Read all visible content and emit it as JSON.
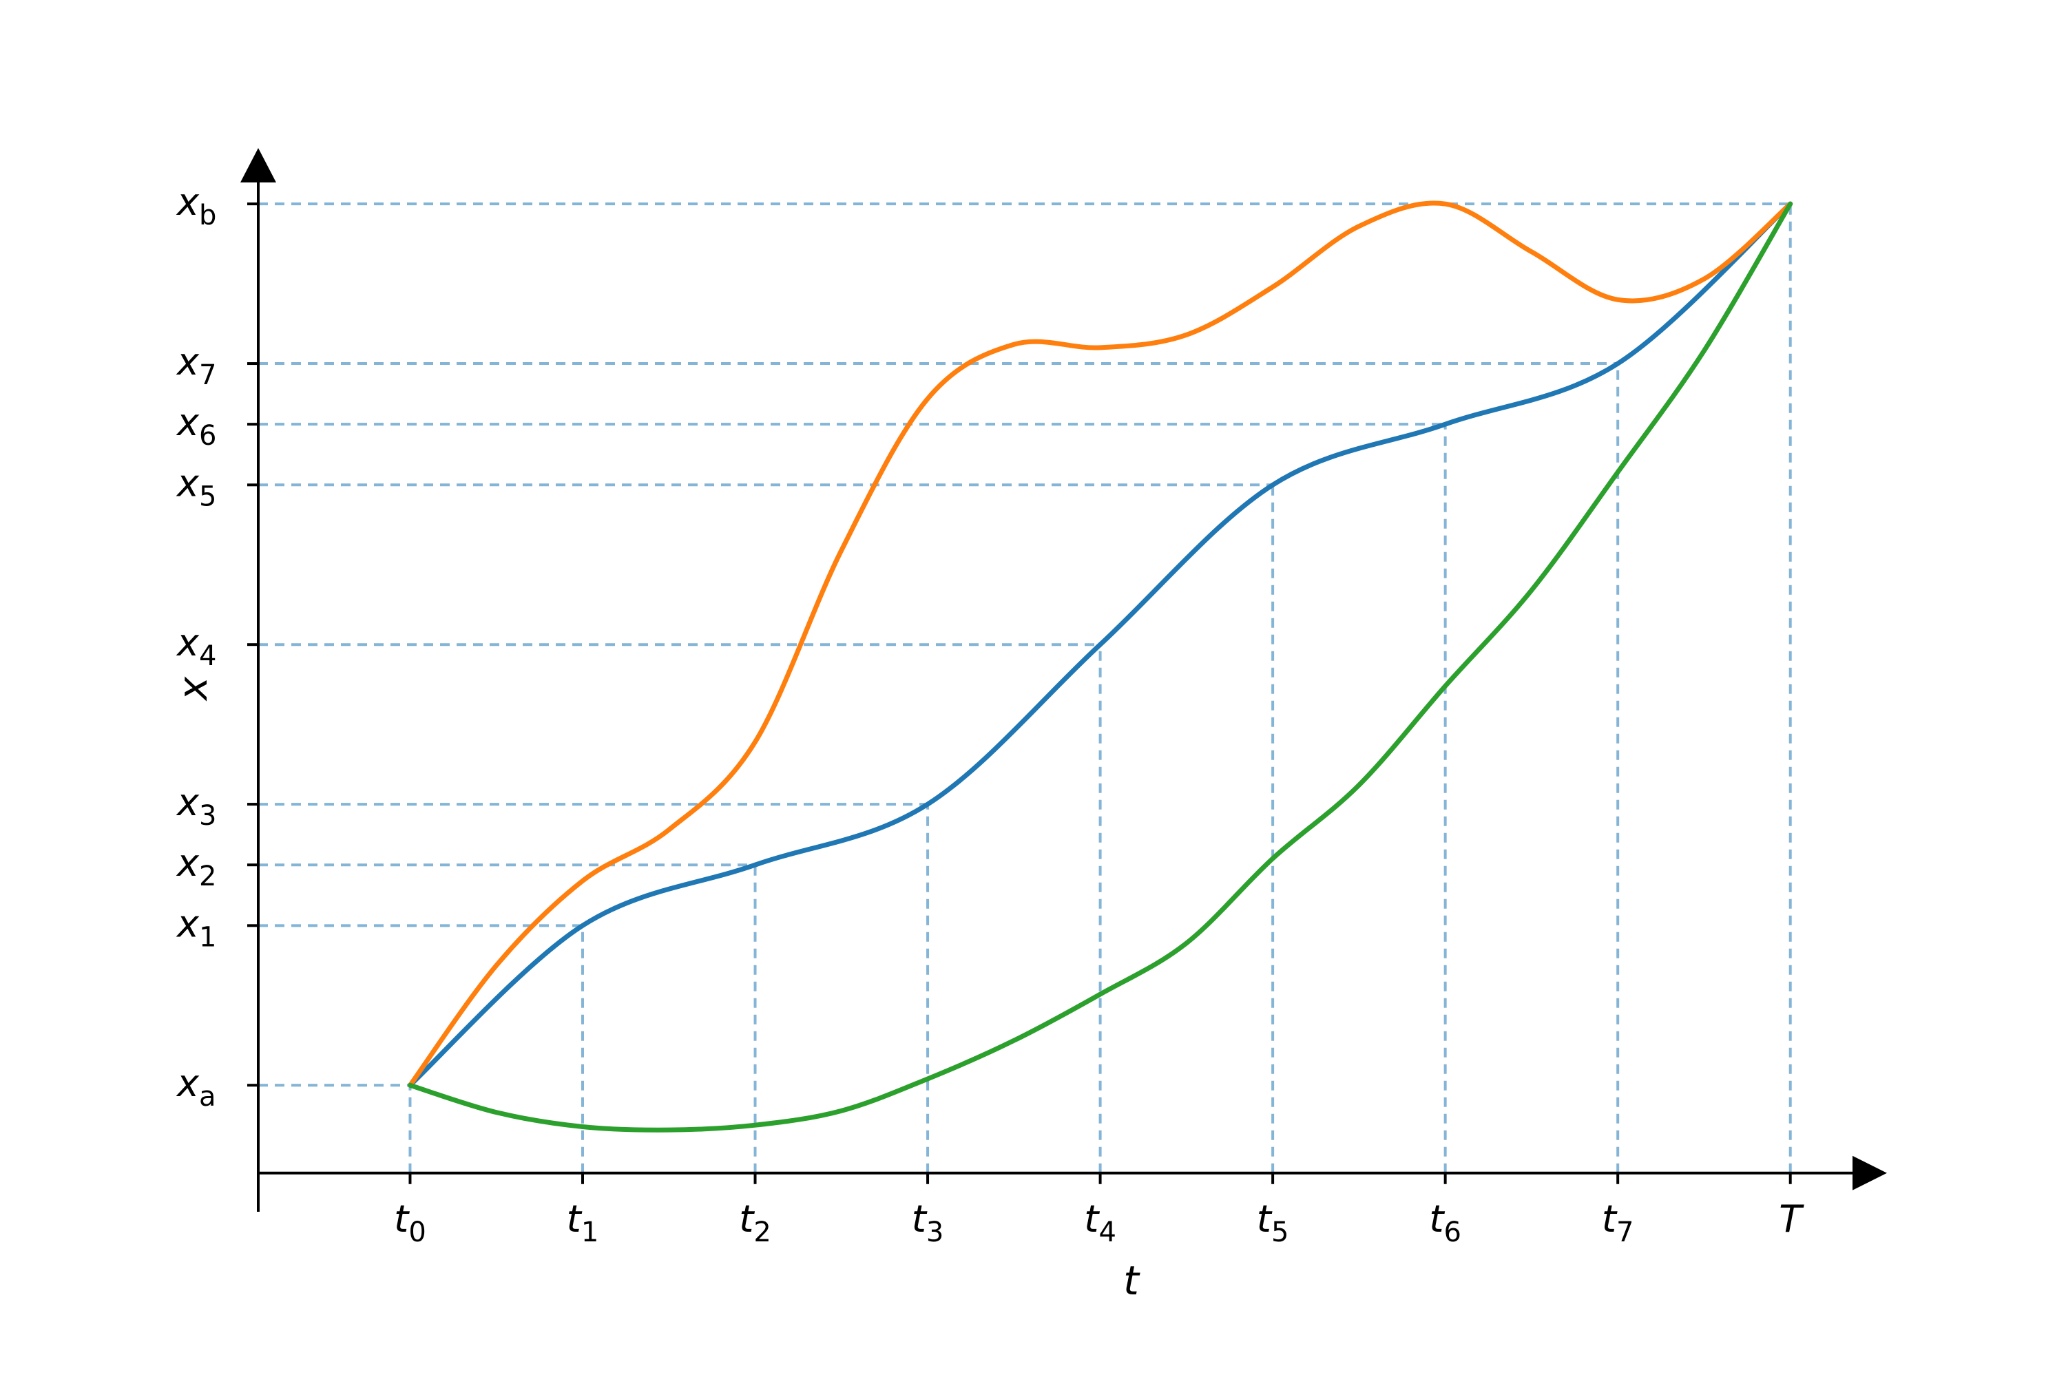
{
  "chart_data": {
    "type": "line",
    "xlabel": "t",
    "ylabel": "x",
    "x_ticks": [
      {
        "base": "t",
        "sub": "0",
        "value": 0
      },
      {
        "base": "t",
        "sub": "1",
        "value": 1
      },
      {
        "base": "t",
        "sub": "2",
        "value": 2
      },
      {
        "base": "t",
        "sub": "3",
        "value": 3
      },
      {
        "base": "t",
        "sub": "4",
        "value": 4
      },
      {
        "base": "t",
        "sub": "5",
        "value": 5
      },
      {
        "base": "t",
        "sub": "6",
        "value": 6
      },
      {
        "base": "t",
        "sub": "7",
        "value": 7
      },
      {
        "base": "T",
        "sub": "",
        "value": 8
      }
    ],
    "y_ticks": [
      {
        "base": "x",
        "sub": "a",
        "value": 0
      },
      {
        "base": "x",
        "sub": "1",
        "value": 1
      },
      {
        "base": "x",
        "sub": "2",
        "value": 1.38
      },
      {
        "base": "x",
        "sub": "3",
        "value": 1.76
      },
      {
        "base": "x",
        "sub": "4",
        "value": 2.76
      },
      {
        "base": "x",
        "sub": "5",
        "value": 3.76
      },
      {
        "base": "x",
        "sub": "6",
        "value": 4.14
      },
      {
        "base": "x",
        "sub": "7",
        "value": 4.52
      },
      {
        "base": "x",
        "sub": "b",
        "value": 5.52
      }
    ],
    "xlim": [
      -0.88,
      8.56
    ],
    "ylim": [
      -0.62,
      5.87
    ],
    "grid": "dashed guides from each sample point to both axes",
    "guide_color": "#1f77b4",
    "series": [
      {
        "color": "#1f77b4",
        "x": [
          0,
          1,
          2,
          3,
          4,
          5,
          6,
          7,
          8
        ],
        "y": [
          0,
          1,
          1.38,
          1.76,
          2.76,
          3.76,
          4.14,
          4.52,
          5.52
        ]
      },
      {
        "color": "#ff7f0e",
        "x": [
          0,
          0.5,
          1,
          1.5,
          2,
          2.5,
          3,
          3.5,
          4,
          4.5,
          5,
          5.5,
          6,
          6.5,
          7,
          7.5,
          8
        ],
        "y": [
          0,
          0.75,
          1.28,
          1.6,
          2.15,
          3.35,
          4.3,
          4.64,
          4.62,
          4.7,
          5.0,
          5.38,
          5.52,
          5.22,
          4.92,
          5.05,
          5.52
        ]
      },
      {
        "color": "#2ca02c",
        "x": [
          0,
          0.5,
          1,
          1.5,
          2,
          2.5,
          3,
          3.5,
          4,
          4.5,
          5,
          5.5,
          6,
          6.5,
          7,
          7.5,
          8
        ],
        "y": [
          0,
          -0.17,
          -0.26,
          -0.28,
          -0.25,
          -0.16,
          0.04,
          0.28,
          0.57,
          0.89,
          1.42,
          1.88,
          2.5,
          3.1,
          3.84,
          4.6,
          5.52
        ]
      }
    ]
  }
}
